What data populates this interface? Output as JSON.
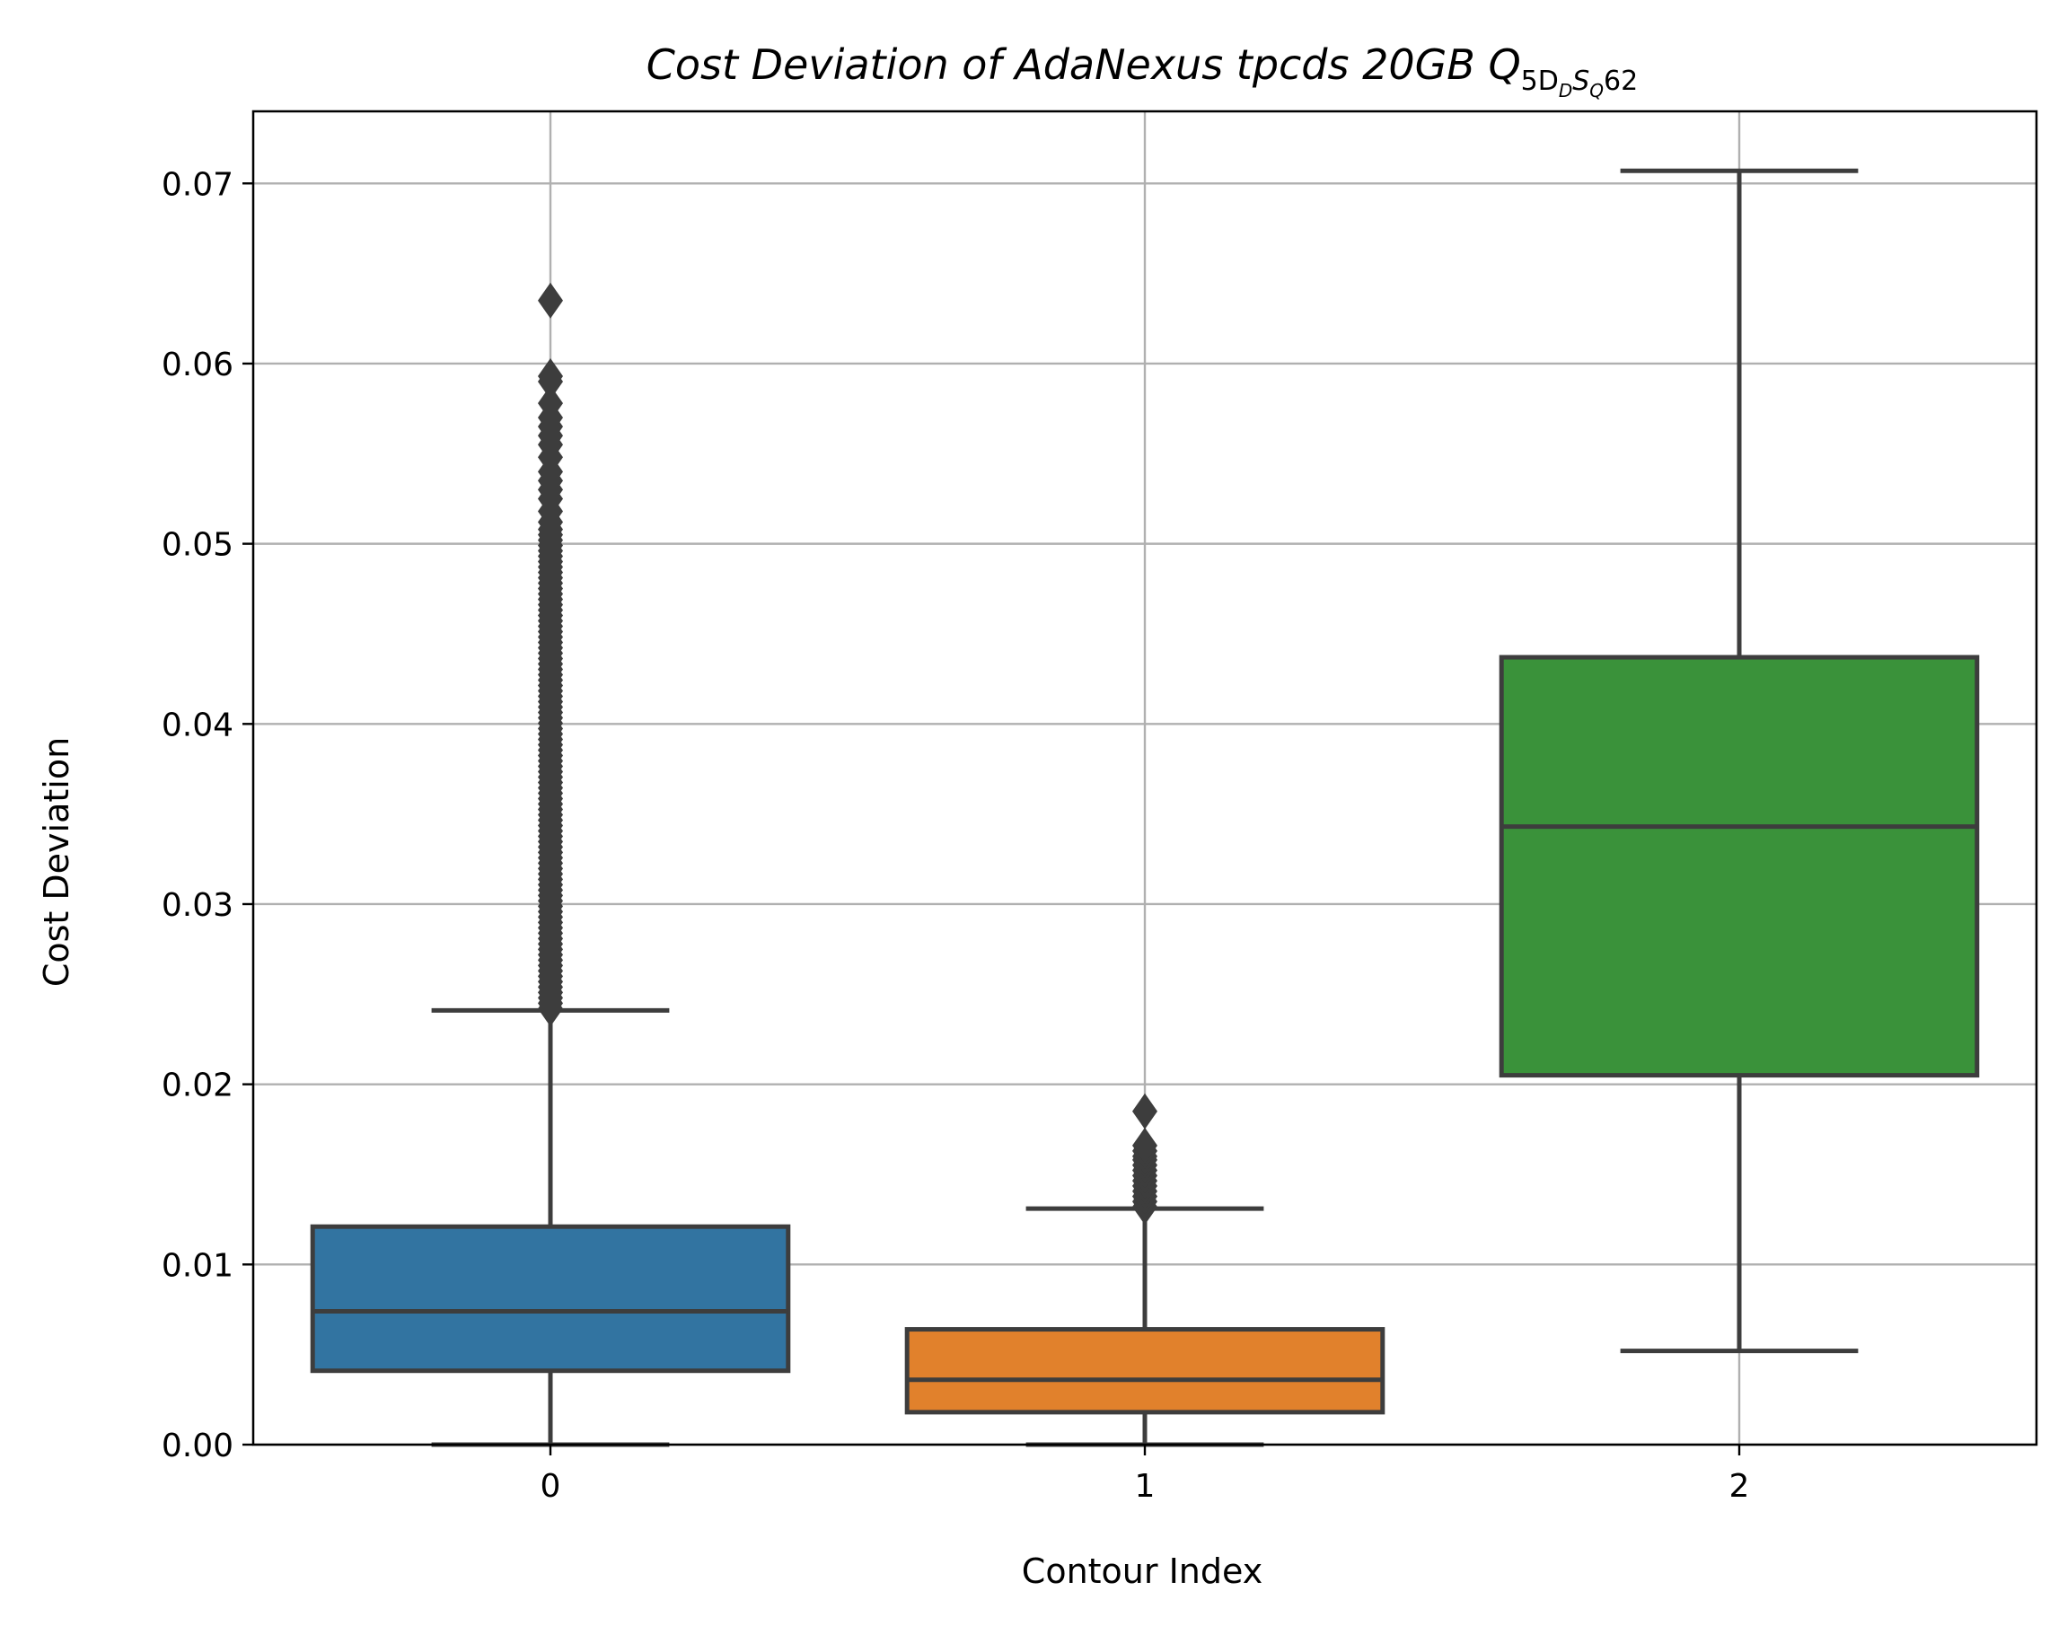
{
  "chart_data": {
    "type": "box",
    "title": "Cost Deviation of AdaNexus tpcds  20GB  Q",
    "title_subscript": "5D",
    "title_subscript2": "D",
    "title_subscript3": "S",
    "title_subscript4": "Q",
    "title_suffix": "62",
    "xlabel": "Contour Index",
    "ylabel": "Cost Deviation",
    "ylim": [
      0,
      0.074
    ],
    "yticks": [
      "0.00",
      "0.01",
      "0.02",
      "0.03",
      "0.04",
      "0.05",
      "0.06",
      "0.07"
    ],
    "ytick_values": [
      0,
      0.01,
      0.02,
      0.03,
      0.04,
      0.05,
      0.06,
      0.07
    ],
    "grid": true,
    "categories": [
      "0",
      "1",
      "2"
    ],
    "boxes": [
      {
        "category": "0",
        "whisker_low": 0.0,
        "q1": 0.0041,
        "median": 0.0074,
        "q3": 0.0121,
        "whisker_high": 0.0241,
        "color": "#3274a1",
        "outliers_range": [
          0.0242,
          0.0508
        ],
        "outliers": [
          0.0512,
          0.0518,
          0.0525,
          0.053,
          0.0535,
          0.054,
          0.0548,
          0.0555,
          0.056,
          0.0565,
          0.057,
          0.0578,
          0.059,
          0.0593,
          0.0635
        ]
      },
      {
        "category": "1",
        "whisker_low": 0.0,
        "q1": 0.0018,
        "median": 0.0036,
        "q3": 0.0064,
        "whisker_high": 0.0131,
        "color": "#e1812c",
        "outliers_range": [
          0.0132,
          0.0158
        ],
        "outliers": [
          0.016,
          0.0163,
          0.0166,
          0.0185
        ]
      },
      {
        "category": "2",
        "whisker_low": 0.0052,
        "q1": 0.0205,
        "median": 0.0343,
        "q3": 0.0437,
        "whisker_high": 0.0707,
        "color": "#3a923a",
        "outliers_range": null,
        "outliers": []
      }
    ],
    "line_color": "#3d3d3d",
    "grid_color": "#b0b0b0"
  }
}
